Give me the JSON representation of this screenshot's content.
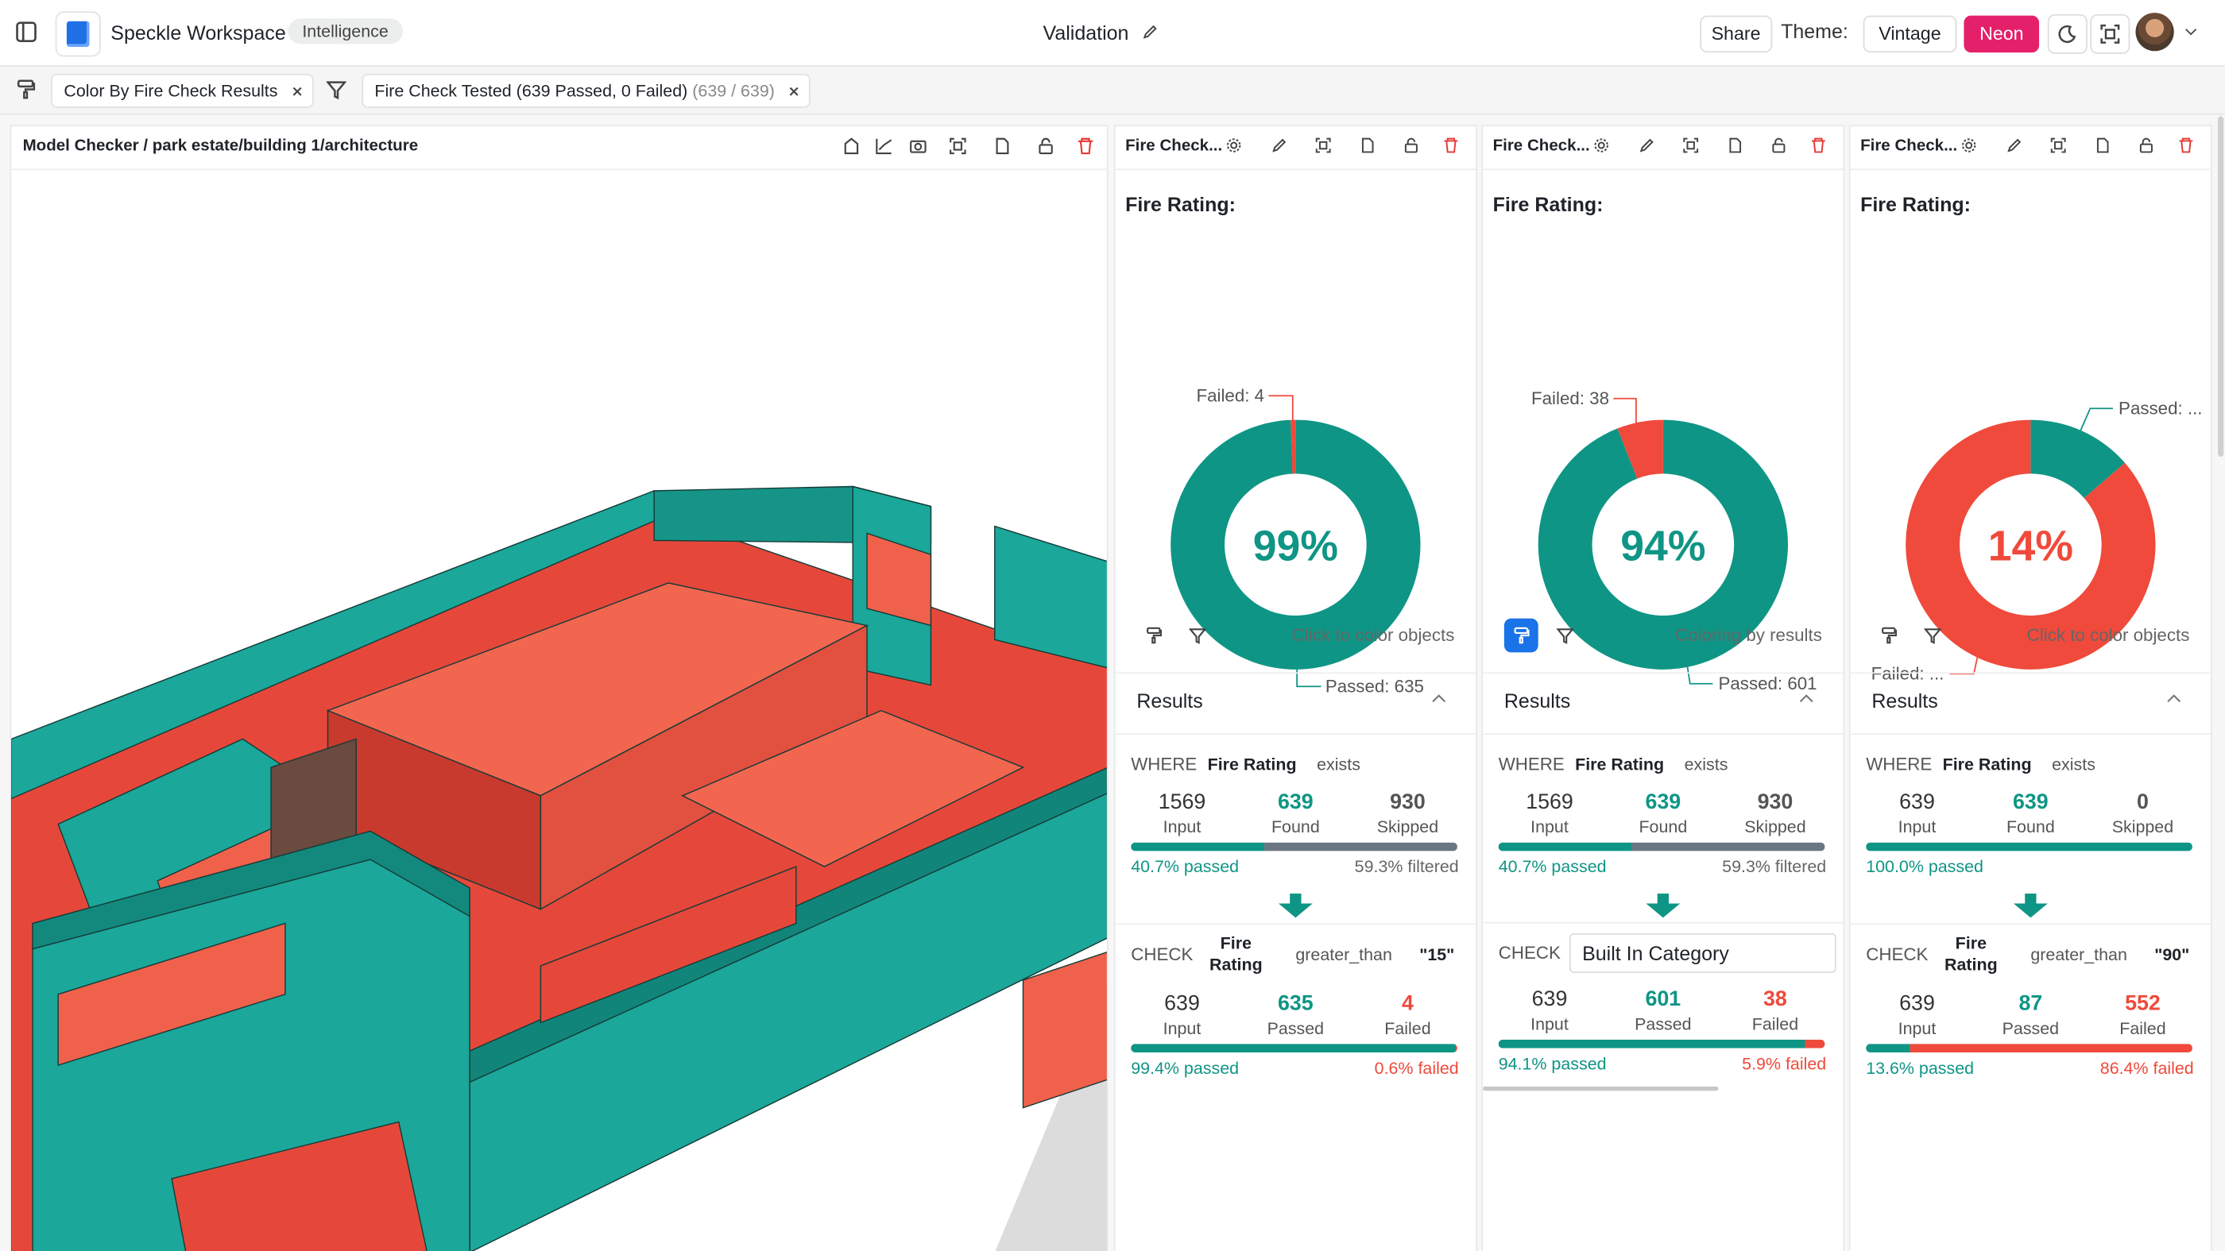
{
  "header": {
    "app": "Speckle Workspace",
    "badge": "Intelligence",
    "title": "Validation",
    "share": "Share",
    "theme_label": "Theme:",
    "themes": [
      "Vintage",
      "Neon"
    ]
  },
  "filter_bar": {
    "color_chip": "Color By Fire Check Results",
    "filter_chip": "Fire Check Tested (639 Passed, 0 Failed)",
    "filter_count": "(639 / 639)"
  },
  "viewer": {
    "title": "Model Checker / park estate/building 1/architecture"
  },
  "panels": [
    {
      "title": "Fire Check...",
      "heading": "Fire Rating:",
      "center": "99%",
      "failed_label": "Failed: 4",
      "passed_label": "Passed: 635",
      "action": "Click to color objects",
      "active": false,
      "results": "Results",
      "where": {
        "keyword": "WHERE",
        "field": "Fire Rating",
        "op": "exists",
        "input": 1569,
        "found": 639,
        "skipped": 930,
        "input_label": "Input",
        "found_label": "Found",
        "skipped_label": "Skipped",
        "passed_text": "40.7% passed",
        "filtered_text": "59.3% filtered"
      },
      "check": {
        "keyword": "CHECK",
        "field": "Fire Rating",
        "op": "greater_than",
        "value": "\"15\"",
        "input": 639,
        "passed": 635,
        "failed": 4,
        "input_label": "Input",
        "passed_label": "Passed",
        "failed_label": "Failed",
        "passed_text": "99.4% passed",
        "failed_text": "0.6% failed"
      }
    },
    {
      "title": "Fire Check...",
      "heading": "Fire Rating:",
      "center": "94%",
      "failed_label": "Failed: 38",
      "passed_label": "Passed: 601",
      "action": "Coloring by results",
      "active": true,
      "results": "Results",
      "where": {
        "keyword": "WHERE",
        "field": "Fire Rating",
        "op": "exists",
        "input": 1569,
        "found": 639,
        "skipped": 930,
        "input_label": "Input",
        "found_label": "Found",
        "skipped_label": "Skipped",
        "passed_text": "40.7% passed",
        "filtered_text": "59.3% filtered"
      },
      "check": {
        "keyword": "CHECK",
        "field": "Built In Category",
        "input": 639,
        "passed": 601,
        "failed": 38,
        "input_label": "Input",
        "passed_label": "Passed",
        "failed_label": "Failed",
        "passed_text": "94.1% passed",
        "failed_text": "5.9% failed"
      }
    },
    {
      "title": "Fire Check...",
      "heading": "Fire Rating:",
      "center": "14%",
      "failed_label": "Failed: ...",
      "passed_label": "Passed: ...",
      "action": "Click to color objects",
      "active": false,
      "results": "Results",
      "where": {
        "keyword": "WHERE",
        "field": "Fire Rating",
        "op": "exists",
        "input": 639,
        "found": 639,
        "skipped": 0,
        "input_label": "Input",
        "found_label": "Found",
        "skipped_label": "Skipped",
        "passed_text": "100.0% passed"
      },
      "check": {
        "keyword": "CHECK",
        "field": "Fire Rating",
        "op": "greater_than",
        "value": "\"90\"",
        "input": 639,
        "passed": 87,
        "failed": 552,
        "input_label": "Input",
        "passed_label": "Passed",
        "failed_label": "Failed",
        "passed_text": "13.6% passed",
        "failed_text": "86.4% failed"
      }
    }
  ]
}
